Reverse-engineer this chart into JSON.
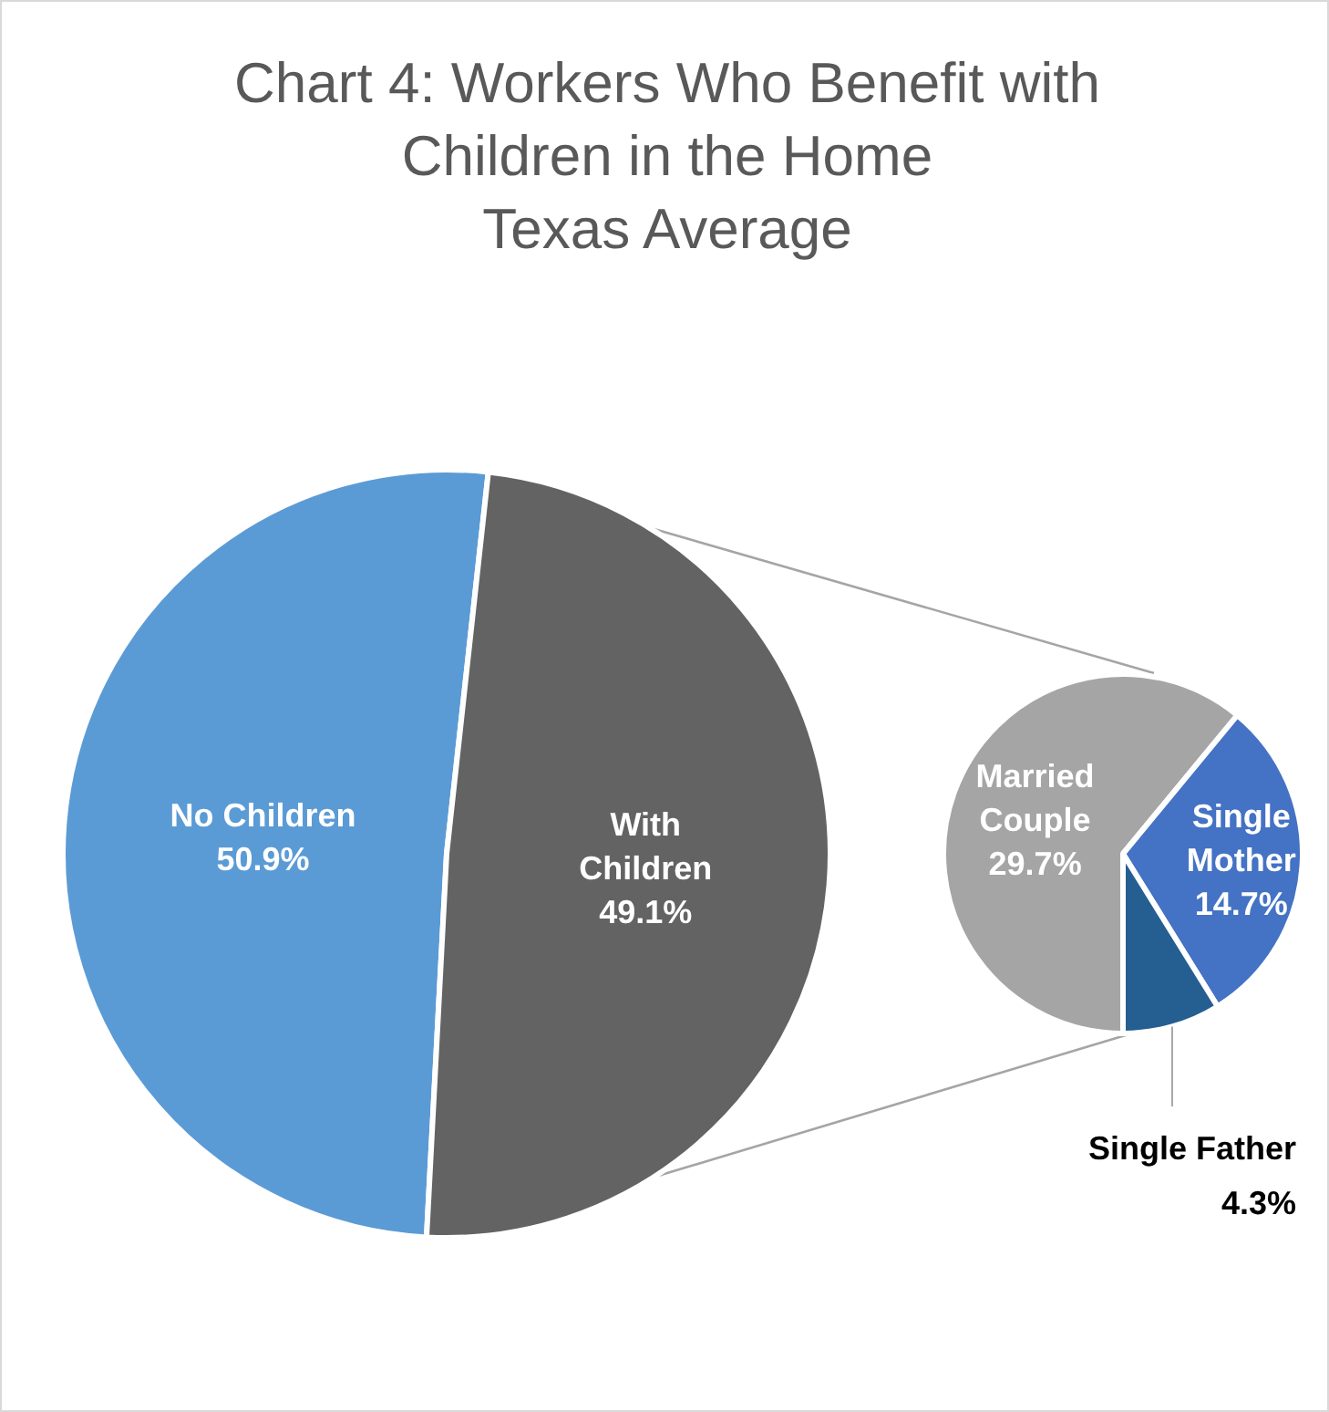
{
  "chart_data": [
    {
      "type": "pie",
      "title": "Chart 4: Workers Who Benefit with Children in the Home",
      "subtitle": "Texas Average",
      "categories": [
        "No Children",
        "With Children"
      ],
      "values": [
        50.9,
        49.1
      ],
      "colors": [
        "#5b9bd5",
        "#636363"
      ],
      "value_labels": [
        "50.9%",
        "49.1%"
      ]
    },
    {
      "type": "pie",
      "categories": [
        "Married Couple",
        "Single Mother",
        "Single Father"
      ],
      "values": [
        29.7,
        14.7,
        4.3
      ],
      "colors": [
        "#a5a5a5",
        "#4472c4",
        "#255e91"
      ],
      "value_labels": [
        "29.7%",
        "14.7%",
        "4.3%"
      ]
    }
  ]
}
